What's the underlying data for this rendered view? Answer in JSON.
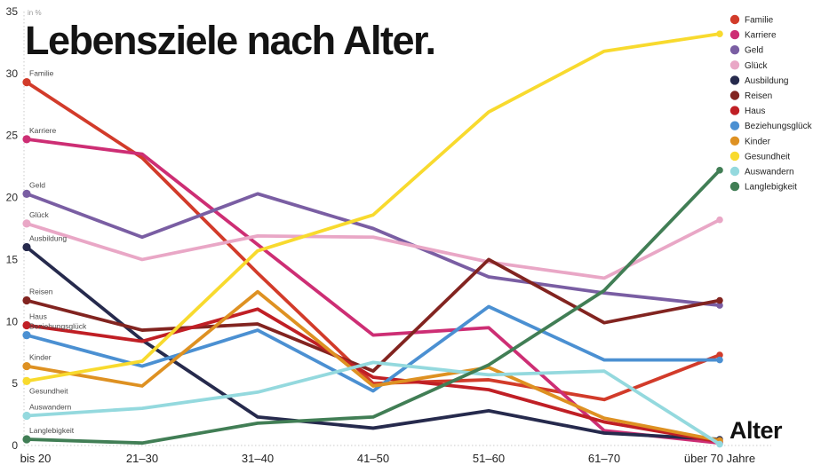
{
  "chart_data": {
    "type": "line",
    "title": "Lebensziele nach Alter.",
    "xlabel": "Alter",
    "ylabel": "in %",
    "ylim": [
      0,
      35
    ],
    "y_ticks": [
      0,
      5,
      10,
      15,
      20,
      25,
      30,
      35
    ],
    "grid": false,
    "legend_position": "right",
    "categories": [
      "bis 20",
      "21–30",
      "31–40",
      "41–50",
      "51–60",
      "61–70",
      "über 70 Jahre"
    ],
    "series": [
      {
        "name": "Familie",
        "color": "#d23b2a",
        "values": [
          29.3,
          23.2,
          13.9,
          5.0,
          5.3,
          3.7,
          7.3
        ]
      },
      {
        "name": "Karriere",
        "color": "#cd2e74",
        "values": [
          24.7,
          23.5,
          16.2,
          8.9,
          9.5,
          1.2,
          0.2
        ]
      },
      {
        "name": "Geld",
        "color": "#7a5ea3",
        "values": [
          20.3,
          16.8,
          20.3,
          17.5,
          13.6,
          12.3,
          11.3
        ]
      },
      {
        "name": "Glück",
        "color": "#e9a7c6",
        "values": [
          17.9,
          15.0,
          16.9,
          16.8,
          14.8,
          13.5,
          18.2
        ]
      },
      {
        "name": "Ausbildung",
        "color": "#262a4d",
        "values": [
          16.0,
          8.5,
          2.3,
          1.4,
          2.8,
          1.0,
          0.5
        ]
      },
      {
        "name": "Reisen",
        "color": "#822420",
        "values": [
          11.7,
          9.3,
          9.8,
          6.0,
          15.0,
          9.9,
          11.7
        ]
      },
      {
        "name": "Haus",
        "color": "#c01f25",
        "values": [
          9.7,
          8.4,
          11.0,
          5.5,
          4.5,
          1.9,
          0.3
        ]
      },
      {
        "name": "Beziehungsglück",
        "color": "#4b90d2",
        "values": [
          8.9,
          6.4,
          9.3,
          4.4,
          11.2,
          6.9,
          6.9
        ]
      },
      {
        "name": "Kinder",
        "color": "#de9122",
        "values": [
          6.4,
          4.8,
          12.4,
          4.8,
          6.3,
          2.2,
          0.4
        ]
      },
      {
        "name": "Gesundheit",
        "color": "#f8da2e",
        "values": [
          5.2,
          6.8,
          15.7,
          18.6,
          26.9,
          31.8,
          33.2
        ],
        "label_below": true
      },
      {
        "name": "Auswandern",
        "color": "#94d9de",
        "values": [
          2.4,
          3.0,
          4.3,
          6.7,
          5.7,
          6.0,
          0.1
        ]
      },
      {
        "name": "Langlebigkeit",
        "color": "#417e55",
        "values": [
          0.5,
          0.2,
          1.8,
          2.3,
          6.5,
          12.5,
          22.2
        ]
      }
    ]
  }
}
